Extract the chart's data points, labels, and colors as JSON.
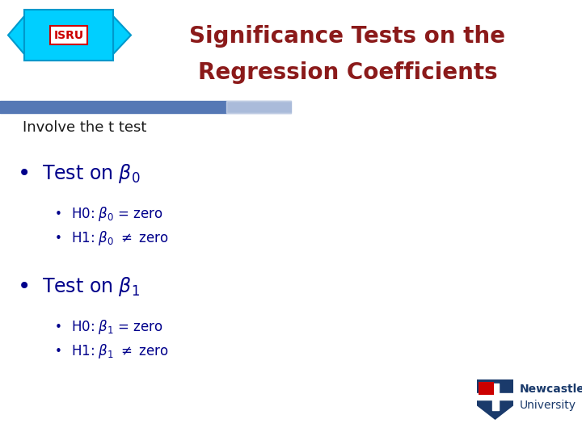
{
  "title_line1": "Significance Tests on the",
  "title_line2": "Regression Coefficients",
  "title_color": "#8B1A1A",
  "subtitle": "Involve the t test",
  "subtitle_color": "#1a1a1a",
  "body_color": "#00008B",
  "bullet1_main": "Test on $\\beta_0$",
  "bullet1_sub1": "H0: $\\beta_0$ = zero",
  "bullet1_sub2": "H1: $\\beta_0$ $\\neq$ zero",
  "bullet2_main": "Test on $\\beta_1$",
  "bullet2_sub1": "H0: $\\beta_1$ = zero",
  "bullet2_sub2": "H1: $\\beta_1$ $\\neq$ zero",
  "bg_color": "#ffffff",
  "blue_bar_color": "#5578b5",
  "isru_cyan": "#00cfff",
  "isru_border": "#0099cc",
  "isru_text_color": "#cc0000",
  "newcastle_blue": "#1a3a6b",
  "newcastle_red": "#cc0000"
}
